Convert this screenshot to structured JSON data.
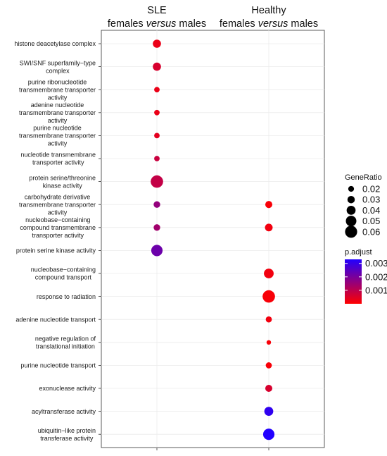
{
  "chart_data": {
    "type": "scatter",
    "columns": [
      {
        "line1": "SLE",
        "line2_normal_a": "females ",
        "line2_italic": "versus",
        "line2_normal_b": " males"
      },
      {
        "line1": "Healthy",
        "line2_normal_a": "females ",
        "line2_italic": "versus",
        "line2_normal_b": " males"
      }
    ],
    "terms": [
      [
        "histone deacetylase complex"
      ],
      [
        "SWI/SNF superfamily−type",
        "complex"
      ],
      [
        "purine ribonucleotide",
        "transmembrane transporter",
        "activity"
      ],
      [
        "adenine nucleotide",
        "transmembrane transporter",
        "activity"
      ],
      [
        "purine nucleotide",
        "transmembrane transporter",
        "activity"
      ],
      [
        "nucleotide transmembrane",
        "transporter activity"
      ],
      [
        "protein serine/threonine",
        "kinase activity"
      ],
      [
        "carbohydrate derivative",
        "transmembrane transporter",
        "activity"
      ],
      [
        "nucleobase−containing",
        "compound transmembrane",
        "transporter activity"
      ],
      [
        "protein serine kinase activity"
      ],
      [
        "nucleobase−containing",
        "compound transport"
      ],
      [
        "response to radiation"
      ],
      [
        "adenine nucleotide transport"
      ],
      [
        "negative regulation of",
        "translational initiation"
      ],
      [
        "purine nucleotide transport"
      ],
      [
        "exonuclease activity"
      ],
      [
        "acyltransferase activity"
      ],
      [
        "ubiquitin−like protein",
        "transferase activity"
      ]
    ],
    "points": [
      {
        "term": 0,
        "column": 0,
        "gene_ratio": 0.035,
        "p_adjust": 0.0003
      },
      {
        "term": 1,
        "column": 0,
        "gene_ratio": 0.035,
        "p_adjust": 0.0006
      },
      {
        "term": 2,
        "column": 0,
        "gene_ratio": 0.018,
        "p_adjust": 0.0003
      },
      {
        "term": 3,
        "column": 0,
        "gene_ratio": 0.018,
        "p_adjust": 0.0003
      },
      {
        "term": 4,
        "column": 0,
        "gene_ratio": 0.018,
        "p_adjust": 0.0004
      },
      {
        "term": 5,
        "column": 0,
        "gene_ratio": 0.018,
        "p_adjust": 0.0008
      },
      {
        "term": 6,
        "column": 0,
        "gene_ratio": 0.062,
        "p_adjust": 0.0009
      },
      {
        "term": 7,
        "column": 0,
        "gene_ratio": 0.025,
        "p_adjust": 0.0016
      },
      {
        "term": 8,
        "column": 0,
        "gene_ratio": 0.025,
        "p_adjust": 0.0014
      },
      {
        "term": 9,
        "column": 0,
        "gene_ratio": 0.055,
        "p_adjust": 0.0022
      },
      {
        "term": 7,
        "column": 1,
        "gene_ratio": 0.028,
        "p_adjust": 0.0001
      },
      {
        "term": 8,
        "column": 1,
        "gene_ratio": 0.032,
        "p_adjust": 0.0002
      },
      {
        "term": 10,
        "column": 1,
        "gene_ratio": 0.045,
        "p_adjust": 0.0002
      },
      {
        "term": 11,
        "column": 1,
        "gene_ratio": 0.062,
        "p_adjust": 0.0001
      },
      {
        "term": 12,
        "column": 1,
        "gene_ratio": 0.022,
        "p_adjust": 0.0002
      },
      {
        "term": 13,
        "column": 1,
        "gene_ratio": 0.012,
        "p_adjust": 0.0001
      },
      {
        "term": 14,
        "column": 1,
        "gene_ratio": 0.022,
        "p_adjust": 0.0001
      },
      {
        "term": 15,
        "column": 1,
        "gene_ratio": 0.028,
        "p_adjust": 0.0006
      },
      {
        "term": 16,
        "column": 1,
        "gene_ratio": 0.04,
        "p_adjust": 0.0031
      },
      {
        "term": 17,
        "column": 1,
        "gene_ratio": 0.055,
        "p_adjust": 0.0033
      }
    ],
    "size_legend": {
      "title": "GeneRatio",
      "values": [
        0.02,
        0.03,
        0.04,
        0.05,
        0.06
      ],
      "labels": [
        "0.02",
        "0.03",
        "0.04",
        "0.05",
        "0.06"
      ]
    },
    "color_legend": {
      "title": "p.adjust",
      "range": [
        0.0,
        0.0033
      ],
      "ticks": [
        0.003,
        0.002,
        0.001
      ],
      "labels": [
        "0.003",
        "0.002",
        "0.001"
      ],
      "low_color": "#ff0000",
      "high_color": "#2200ff"
    },
    "grid": true,
    "legend_position": "right"
  }
}
